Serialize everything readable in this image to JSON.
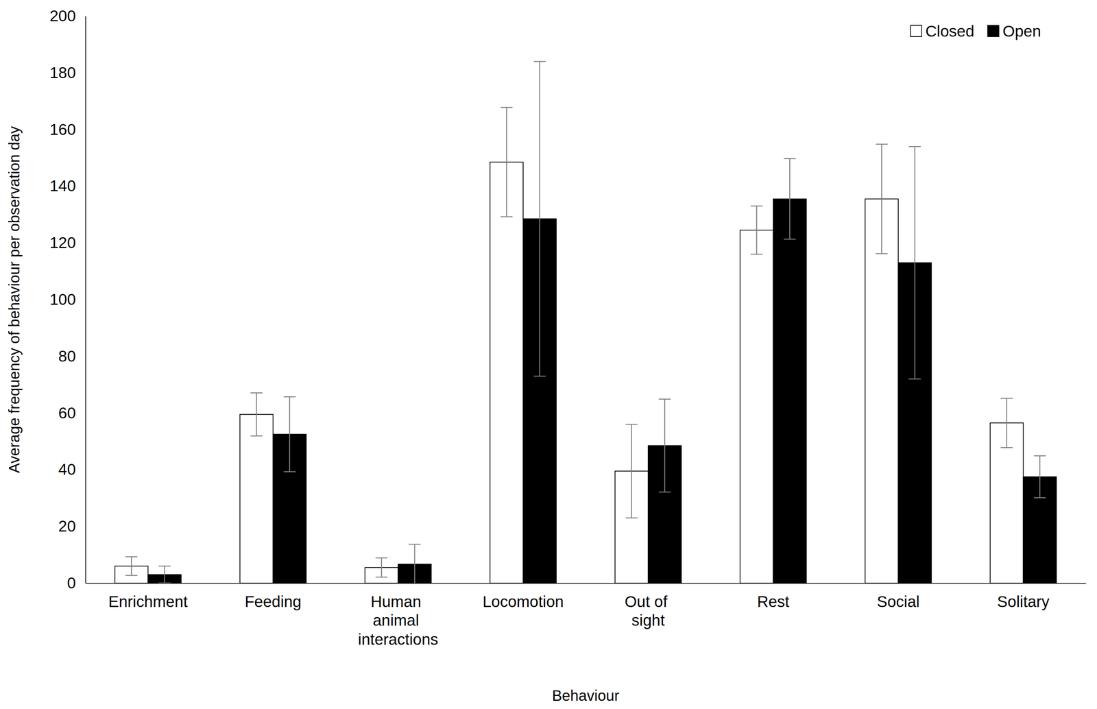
{
  "chart_data": {
    "type": "bar",
    "x_label": "Behaviour",
    "y_label": "Average frequency of behaviour per observation day",
    "categories": [
      "Enrichment",
      "Feeding",
      "Human animal interactions",
      "Locomotion",
      "Out of sight",
      "Rest",
      "Social",
      "Solitary"
    ],
    "series": [
      {
        "name": "Closed",
        "color": "#ffffff",
        "values": [
          6,
          59.5,
          5.5,
          148.5,
          39.5,
          124.5,
          135.5,
          56.5
        ],
        "errors": [
          3.3,
          7.6,
          3.4,
          19.3,
          16.5,
          8.5,
          19.3,
          8.7
        ]
      },
      {
        "name": "Open",
        "color": "#000000",
        "values": [
          3,
          52.5,
          6.7,
          128.5,
          48.5,
          135.5,
          113,
          37.5
        ],
        "errors": [
          3,
          13.2,
          7,
          55.5,
          16.4,
          14.2,
          41,
          7.4
        ]
      }
    ],
    "ylim": [
      0,
      200
    ],
    "yticks": [
      0,
      20,
      40,
      60,
      80,
      100,
      120,
      140,
      160,
      180,
      200
    ],
    "grid": false,
    "legend": "upper right"
  }
}
